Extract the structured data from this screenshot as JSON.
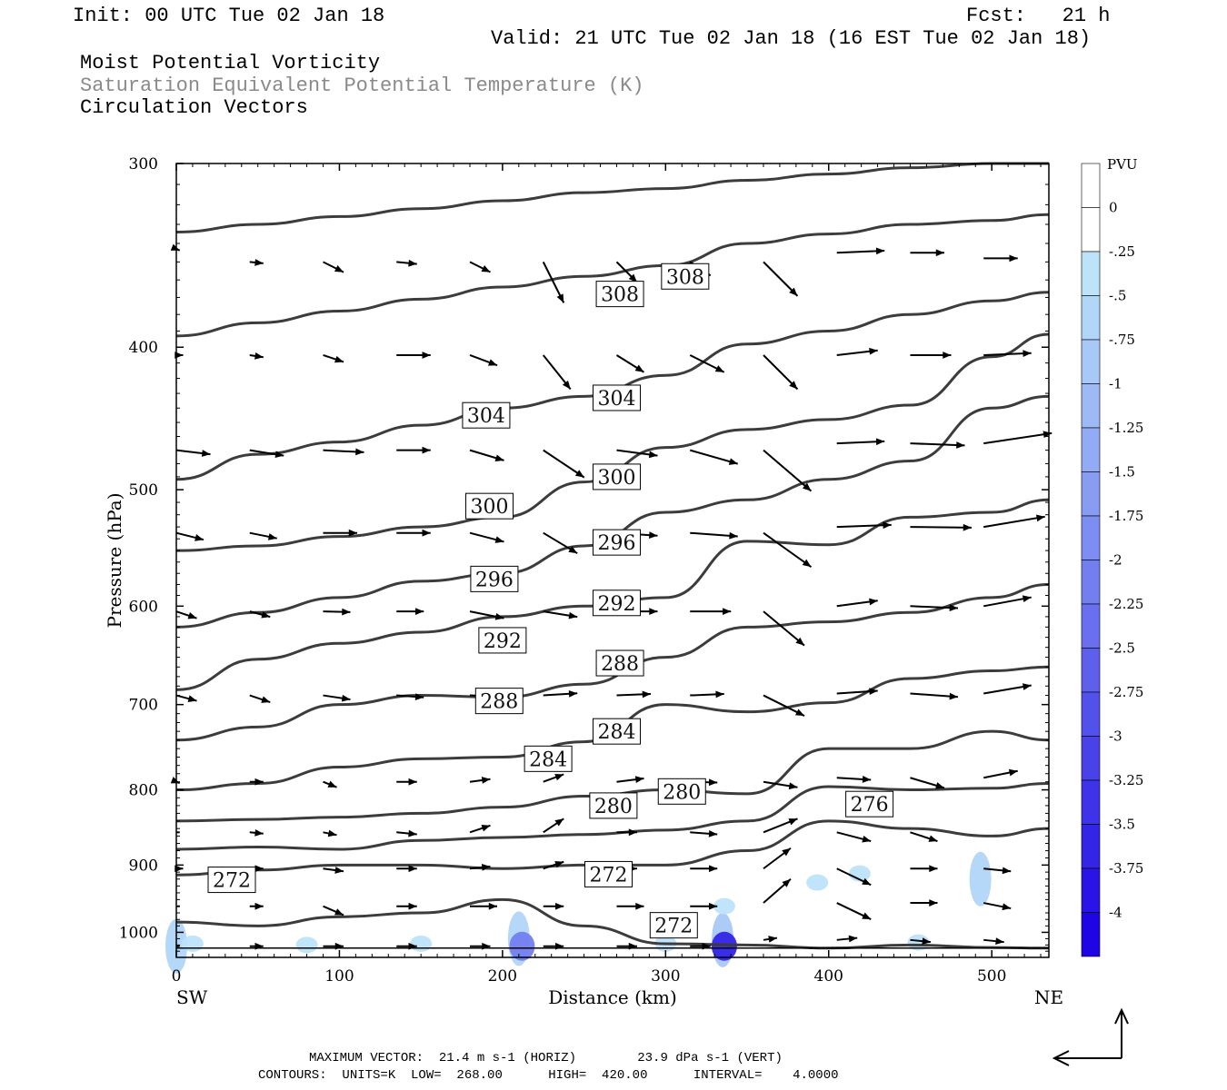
{
  "header": {
    "init": "Init: 00 UTC Tue 02 Jan 18",
    "fcst": "Fcst:   21 h",
    "valid": "Valid: 21 UTC Tue 02 Jan 18 (16 EST Tue 02 Jan 18)",
    "field1": "Moist Potential Vorticity",
    "field2": "Saturation Equivalent Potential Temperature (K)",
    "field3": "Circulation Vectors"
  },
  "colorbar": {
    "title": "PVU",
    "labels": [
      "0",
      "-.25",
      "-.5",
      "-.75",
      "-1",
      "-1.25",
      "-1.5",
      "-1.75",
      "-2",
      "-2.25",
      "-2.5",
      "-2.75",
      "-3",
      "-3.25",
      "-3.5",
      "-3.75",
      "-4"
    ],
    "colors": [
      "#ffffff",
      "#ffffff",
      "#bde3f9",
      "#b2d6f8",
      "#a8c8f7",
      "#9dbaf5",
      "#93abf4",
      "#889cf2",
      "#7e8df1",
      "#737eef",
      "#696fee",
      "#5e60ec",
      "#5351eb",
      "#4942e9",
      "#3e33e8",
      "#3424e6",
      "#2a14e5",
      "#1f05e3"
    ]
  },
  "footer": {
    "line1": "MAXIMUM VECTOR:  21.4 m s-1 (HORIZ)        23.9 dPa s-1 (VERT)",
    "line2": "CONTOURS:  UNITS=K  LOW=  268.00      HIGH=  420.00      INTERVAL=    4.0000"
  },
  "chart_data": {
    "type": "line",
    "title": "Saturation Equivalent Potential Temperature (K)",
    "xlabel": "Distance (km)",
    "ylabel": "Pressure (hPa)",
    "xlim": [
      0,
      535
    ],
    "ylim": [
      1040,
      300
    ],
    "y_scale": "log-pressure (inverted)",
    "x_ticks": [
      "0",
      "100",
      "200",
      "300",
      "400",
      "500"
    ],
    "x_tick_values": [
      0,
      100,
      200,
      300,
      400,
      500
    ],
    "y_ticks": [
      "300",
      "400",
      "500",
      "600",
      "700",
      "800",
      "900",
      "1000"
    ],
    "y_tick_values": [
      300,
      400,
      500,
      600,
      700,
      800,
      900,
      1000
    ],
    "x_endpoint_labels": [
      "SW",
      "NE"
    ],
    "x": [
      0,
      50,
      100,
      150,
      200,
      250,
      300,
      350,
      400,
      450,
      500,
      535
    ],
    "series": [
      {
        "values": [
          984,
          990,
          976,
          970,
          950,
          990,
          1018,
          1020,
          1025,
          1020,
          1024,
          1025
        ]
      },
      {
        "values": [
          914,
          907,
          900,
          900,
          905,
          900,
          900,
          880,
          840,
          850,
          860,
          850
        ]
      },
      {
        "values": [
          878,
          875,
          878,
          866,
          862,
          858,
          852,
          840,
          796,
          800,
          798,
          792
        ]
      },
      {
        "values": [
          840,
          838,
          835,
          830,
          822,
          808,
          800,
          805,
          750,
          750,
          730,
          740
        ]
      },
      {
        "values": [
          800,
          792,
          772,
          762,
          760,
          742,
          700,
          708,
          698,
          672,
          664,
          660
        ]
      },
      {
        "values": [
          740,
          725,
          700,
          690,
          692,
          678,
          650,
          620,
          615,
          606,
          592,
          580
        ]
      },
      {
        "values": [
          684,
          652,
          636,
          625,
          610,
          600,
          592,
          542,
          545,
          522,
          518,
          508
        ]
      },
      {
        "values": [
          620,
          606,
          592,
          577,
          570,
          546,
          518,
          508,
          492,
          478,
          440,
          432
        ]
      },
      {
        "values": [
          550,
          546,
          538,
          530,
          522,
          494,
          468,
          455,
          448,
          438,
          406,
          392
        ]
      },
      {
        "values": [
          492,
          473,
          464,
          452,
          440,
          432,
          418,
          398,
          390,
          380,
          372,
          367
        ]
      },
      {
        "values": [
          393,
          385,
          378,
          371,
          364,
          358,
          352,
          340,
          335,
          330,
          328,
          325
        ]
      },
      {
        "values": [
          334,
          330,
          326,
          322,
          318,
          314,
          312,
          308,
          305,
          302,
          300,
          300
        ]
      }
    ],
    "contour_labels": [
      {
        "text": "308",
        "x": 272,
        "p": 368
      },
      {
        "text": "308",
        "x": 312,
        "p": 358
      },
      {
        "text": "304",
        "x": 190,
        "p": 445
      },
      {
        "text": "304",
        "x": 270,
        "p": 433
      },
      {
        "text": "300",
        "x": 192,
        "p": 513
      },
      {
        "text": "300",
        "x": 270,
        "p": 490
      },
      {
        "text": "296",
        "x": 195,
        "p": 575
      },
      {
        "text": "296",
        "x": 270,
        "p": 543
      },
      {
        "text": "292",
        "x": 200,
        "p": 633
      },
      {
        "text": "292",
        "x": 270,
        "p": 597
      },
      {
        "text": "288",
        "x": 198,
        "p": 696
      },
      {
        "text": "288",
        "x": 272,
        "p": 656
      },
      {
        "text": "284",
        "x": 228,
        "p": 762
      },
      {
        "text": "284",
        "x": 270,
        "p": 730
      },
      {
        "text": "280",
        "x": 268,
        "p": 820
      },
      {
        "text": "280",
        "x": 310,
        "p": 802
      },
      {
        "text": "276",
        "x": 425,
        "p": 818
      },
      {
        "text": "272",
        "x": 34,
        "p": 921
      },
      {
        "text": "272",
        "x": 265,
        "p": 913
      },
      {
        "text": "272",
        "x": 305,
        "p": 989
      }
    ],
    "mpv_shading": [
      {
        "x": 0,
        "p": 1022,
        "level": -0.5
      },
      {
        "x": 10,
        "p": 1018,
        "level": -0.25
      },
      {
        "x": 80,
        "p": 1020,
        "level": -0.25
      },
      {
        "x": 150,
        "p": 1018,
        "level": -0.25
      },
      {
        "x": 210,
        "p": 1010,
        "level": -0.5
      },
      {
        "x": 212,
        "p": 1022,
        "level": -2.0
      },
      {
        "x": 300,
        "p": 1018,
        "level": -0.25
      },
      {
        "x": 335,
        "p": 1012,
        "level": -0.75
      },
      {
        "x": 336,
        "p": 1022,
        "level": -3.5
      },
      {
        "x": 336,
        "p": 960,
        "level": -0.25
      },
      {
        "x": 393,
        "p": 925,
        "level": -0.25
      },
      {
        "x": 419,
        "p": 912,
        "level": -0.25
      },
      {
        "x": 493,
        "p": 920,
        "level": -0.5
      },
      {
        "x": 455,
        "p": 1016,
        "level": -0.25
      }
    ],
    "vectors": [
      {
        "x": 0,
        "p": 343,
        "u": 0.5,
        "w": 0.2
      },
      {
        "x": 45,
        "p": 350,
        "u": 2,
        "w": 0.2
      },
      {
        "x": 90,
        "p": 350,
        "u": 3,
        "w": 1.5
      },
      {
        "x": 135,
        "p": 350,
        "u": 3,
        "w": 0.3
      },
      {
        "x": 180,
        "p": 350,
        "u": 3,
        "w": 1.5
      },
      {
        "x": 225,
        "p": 350,
        "u": 3,
        "w": 6
      },
      {
        "x": 270,
        "p": 350,
        "u": 3,
        "w": 3
      },
      {
        "x": 315,
        "p": 350,
        "u": 3,
        "w": 2
      },
      {
        "x": 360,
        "p": 350,
        "u": 5,
        "w": 5
      },
      {
        "x": 405,
        "p": 345,
        "u": 7,
        "w": -0.3
      },
      {
        "x": 450,
        "p": 345,
        "u": 5,
        "w": 0
      },
      {
        "x": 495,
        "p": 348,
        "u": 5,
        "w": 0
      },
      {
        "x": 0,
        "p": 405,
        "u": 1,
        "w": 0
      },
      {
        "x": 45,
        "p": 405,
        "u": 2,
        "w": 0.3
      },
      {
        "x": 90,
        "p": 405,
        "u": 3,
        "w": 1
      },
      {
        "x": 135,
        "p": 405,
        "u": 5,
        "w": 0
      },
      {
        "x": 180,
        "p": 405,
        "u": 4,
        "w": 1.5
      },
      {
        "x": 225,
        "p": 405,
        "u": 4,
        "w": 5
      },
      {
        "x": 270,
        "p": 405,
        "u": 4,
        "w": 2.5
      },
      {
        "x": 315,
        "p": 405,
        "u": 5,
        "w": 2.5
      },
      {
        "x": 360,
        "p": 405,
        "u": 5,
        "w": 5
      },
      {
        "x": 405,
        "p": 405,
        "u": 6,
        "w": -0.7
      },
      {
        "x": 450,
        "p": 405,
        "u": 6,
        "w": 0
      },
      {
        "x": 495,
        "p": 405,
        "u": 7,
        "w": -0.3
      },
      {
        "x": 0,
        "p": 470,
        "u": 5,
        "w": 0.6
      },
      {
        "x": 45,
        "p": 470,
        "u": 5,
        "w": 0.8
      },
      {
        "x": 90,
        "p": 470,
        "u": 6,
        "w": 0.3
      },
      {
        "x": 135,
        "p": 470,
        "u": 5,
        "w": 0
      },
      {
        "x": 180,
        "p": 470,
        "u": 5,
        "w": 1.5
      },
      {
        "x": 225,
        "p": 470,
        "u": 6,
        "w": 4
      },
      {
        "x": 270,
        "p": 470,
        "u": 6,
        "w": 0.8
      },
      {
        "x": 315,
        "p": 470,
        "u": 7,
        "w": 2
      },
      {
        "x": 360,
        "p": 470,
        "u": 7,
        "w": 6
      },
      {
        "x": 405,
        "p": 465,
        "u": 7,
        "w": -0.3
      },
      {
        "x": 450,
        "p": 465,
        "u": 8,
        "w": 0.3
      },
      {
        "x": 495,
        "p": 465,
        "u": 10,
        "w": -1.5
      },
      {
        "x": 0,
        "p": 535,
        "u": 4,
        "w": 1
      },
      {
        "x": 45,
        "p": 535,
        "u": 4,
        "w": 0.8
      },
      {
        "x": 90,
        "p": 535,
        "u": 5,
        "w": 0
      },
      {
        "x": 135,
        "p": 535,
        "u": 5,
        "w": 0
      },
      {
        "x": 180,
        "p": 535,
        "u": 5,
        "w": 1.3
      },
      {
        "x": 225,
        "p": 535,
        "u": 5,
        "w": 3
      },
      {
        "x": 270,
        "p": 535,
        "u": 6,
        "w": 0.4
      },
      {
        "x": 315,
        "p": 535,
        "u": 7,
        "w": 0.5
      },
      {
        "x": 360,
        "p": 535,
        "u": 7,
        "w": 5
      },
      {
        "x": 405,
        "p": 530,
        "u": 8,
        "w": -0.3
      },
      {
        "x": 450,
        "p": 530,
        "u": 9,
        "w": 0.1
      },
      {
        "x": 495,
        "p": 530,
        "u": 9,
        "w": -1.5
      },
      {
        "x": 0,
        "p": 605,
        "u": 3,
        "w": 1
      },
      {
        "x": 45,
        "p": 605,
        "u": 3,
        "w": 0.8
      },
      {
        "x": 90,
        "p": 605,
        "u": 4,
        "w": 0.1
      },
      {
        "x": 135,
        "p": 605,
        "u": 4,
        "w": 0
      },
      {
        "x": 180,
        "p": 605,
        "u": 5,
        "w": 1
      },
      {
        "x": 225,
        "p": 605,
        "u": 5,
        "w": 0.8
      },
      {
        "x": 270,
        "p": 605,
        "u": 6,
        "w": 0
      },
      {
        "x": 315,
        "p": 605,
        "u": 6,
        "w": 0
      },
      {
        "x": 360,
        "p": 605,
        "u": 6,
        "w": 5
      },
      {
        "x": 405,
        "p": 600,
        "u": 6,
        "w": -0.8
      },
      {
        "x": 450,
        "p": 600,
        "u": 7,
        "w": 0.3
      },
      {
        "x": 495,
        "p": 600,
        "u": 7,
        "w": -1.3
      },
      {
        "x": 0,
        "p": 690,
        "u": 3,
        "w": 0.8
      },
      {
        "x": 45,
        "p": 690,
        "u": 3,
        "w": 1
      },
      {
        "x": 90,
        "p": 690,
        "u": 4,
        "w": 0.6
      },
      {
        "x": 135,
        "p": 690,
        "u": 4,
        "w": 0.3
      },
      {
        "x": 180,
        "p": 690,
        "u": 5,
        "w": 0.2
      },
      {
        "x": 225,
        "p": 690,
        "u": 5,
        "w": -0.3
      },
      {
        "x": 270,
        "p": 690,
        "u": 5,
        "w": -0.2
      },
      {
        "x": 315,
        "p": 690,
        "u": 5,
        "w": -0.2
      },
      {
        "x": 360,
        "p": 690,
        "u": 6,
        "w": 3
      },
      {
        "x": 405,
        "p": 688,
        "u": 6,
        "w": -0.4
      },
      {
        "x": 450,
        "p": 688,
        "u": 7,
        "w": 0.5
      },
      {
        "x": 495,
        "p": 688,
        "u": 7,
        "w": -1.2
      },
      {
        "x": 0,
        "p": 790,
        "u": 0.5,
        "w": 0.2
      },
      {
        "x": 45,
        "p": 790,
        "u": 2,
        "w": 0
      },
      {
        "x": 90,
        "p": 790,
        "u": 2,
        "w": 0.8
      },
      {
        "x": 135,
        "p": 790,
        "u": 3,
        "w": 0
      },
      {
        "x": 180,
        "p": 790,
        "u": 3,
        "w": -0.4
      },
      {
        "x": 225,
        "p": 790,
        "u": 3,
        "w": -1.1
      },
      {
        "x": 270,
        "p": 790,
        "u": 4,
        "w": -0.5
      },
      {
        "x": 315,
        "p": 790,
        "u": 4,
        "w": 0.1
      },
      {
        "x": 360,
        "p": 790,
        "u": 5,
        "w": 0.8
      },
      {
        "x": 405,
        "p": 785,
        "u": 5,
        "w": 0.3
      },
      {
        "x": 450,
        "p": 785,
        "u": 5,
        "w": 1.5
      },
      {
        "x": 495,
        "p": 785,
        "u": 5,
        "w": -1
      },
      {
        "x": 0,
        "p": 855,
        "u": 0.5,
        "w": 0
      },
      {
        "x": 45,
        "p": 855,
        "u": 2,
        "w": 0.2
      },
      {
        "x": 90,
        "p": 855,
        "u": 2,
        "w": 0.4
      },
      {
        "x": 135,
        "p": 855,
        "u": 3,
        "w": 0.3
      },
      {
        "x": 180,
        "p": 855,
        "u": 3,
        "w": -1
      },
      {
        "x": 225,
        "p": 855,
        "u": 3,
        "w": -2
      },
      {
        "x": 270,
        "p": 855,
        "u": 3,
        "w": 0
      },
      {
        "x": 315,
        "p": 855,
        "u": 4,
        "w": 0.3
      },
      {
        "x": 360,
        "p": 855,
        "u": 5,
        "w": -2
      },
      {
        "x": 405,
        "p": 855,
        "u": 5,
        "w": 1.3
      },
      {
        "x": 450,
        "p": 855,
        "u": 4,
        "w": 1.3
      },
      {
        "x": 495,
        "p": 855,
        "u": 0,
        "w": 0
      },
      {
        "x": 0,
        "p": 905,
        "u": 1,
        "w": 0
      },
      {
        "x": 45,
        "p": 905,
        "u": 2,
        "w": 0
      },
      {
        "x": 90,
        "p": 905,
        "u": 3,
        "w": 0.4
      },
      {
        "x": 135,
        "p": 905,
        "u": 3,
        "w": 0
      },
      {
        "x": 180,
        "p": 905,
        "u": 3,
        "w": -0.3
      },
      {
        "x": 225,
        "p": 905,
        "u": 3,
        "w": -1
      },
      {
        "x": 270,
        "p": 905,
        "u": 3,
        "w": 0
      },
      {
        "x": 315,
        "p": 905,
        "u": 4,
        "w": 0
      },
      {
        "x": 360,
        "p": 905,
        "u": 4,
        "w": -3
      },
      {
        "x": 405,
        "p": 905,
        "u": 5,
        "w": 2.4
      },
      {
        "x": 450,
        "p": 905,
        "u": 4,
        "w": 0
      },
      {
        "x": 495,
        "p": 905,
        "u": 4,
        "w": 0.4
      },
      {
        "x": 0,
        "p": 960,
        "u": 0.5,
        "w": 0
      },
      {
        "x": 45,
        "p": 960,
        "u": 2,
        "w": 0
      },
      {
        "x": 90,
        "p": 960,
        "u": 3,
        "w": 1.3
      },
      {
        "x": 135,
        "p": 960,
        "u": 3,
        "w": 0
      },
      {
        "x": 180,
        "p": 960,
        "u": 4,
        "w": 0
      },
      {
        "x": 225,
        "p": 960,
        "u": 3,
        "w": 0
      },
      {
        "x": 270,
        "p": 960,
        "u": 4,
        "w": 0
      },
      {
        "x": 315,
        "p": 960,
        "u": 4,
        "w": 0
      },
      {
        "x": 360,
        "p": 955,
        "u": 4,
        "w": -3.5
      },
      {
        "x": 405,
        "p": 955,
        "u": 5,
        "w": 2.4
      },
      {
        "x": 450,
        "p": 955,
        "u": 4,
        "w": 0
      },
      {
        "x": 495,
        "p": 955,
        "u": 4,
        "w": 0.8
      },
      {
        "x": 0,
        "p": 1022,
        "u": 0.5,
        "w": 0
      },
      {
        "x": 45,
        "p": 1022,
        "u": 2,
        "w": 0
      },
      {
        "x": 90,
        "p": 1022,
        "u": 3,
        "w": 0
      },
      {
        "x": 135,
        "p": 1022,
        "u": 3,
        "w": 0
      },
      {
        "x": 180,
        "p": 1022,
        "u": 3,
        "w": 0
      },
      {
        "x": 225,
        "p": 1022,
        "u": 3,
        "w": 0
      },
      {
        "x": 270,
        "p": 1022,
        "u": 3,
        "w": 0
      },
      {
        "x": 315,
        "p": 1022,
        "u": 3,
        "w": 0
      },
      {
        "x": 360,
        "p": 1012,
        "u": 2,
        "w": -0.3
      },
      {
        "x": 405,
        "p": 1012,
        "u": 3,
        "w": -0.3
      },
      {
        "x": 450,
        "p": 1012,
        "u": 3,
        "w": 0.3
      },
      {
        "x": 495,
        "p": 1012,
        "u": 3,
        "w": 0.3
      }
    ]
  }
}
